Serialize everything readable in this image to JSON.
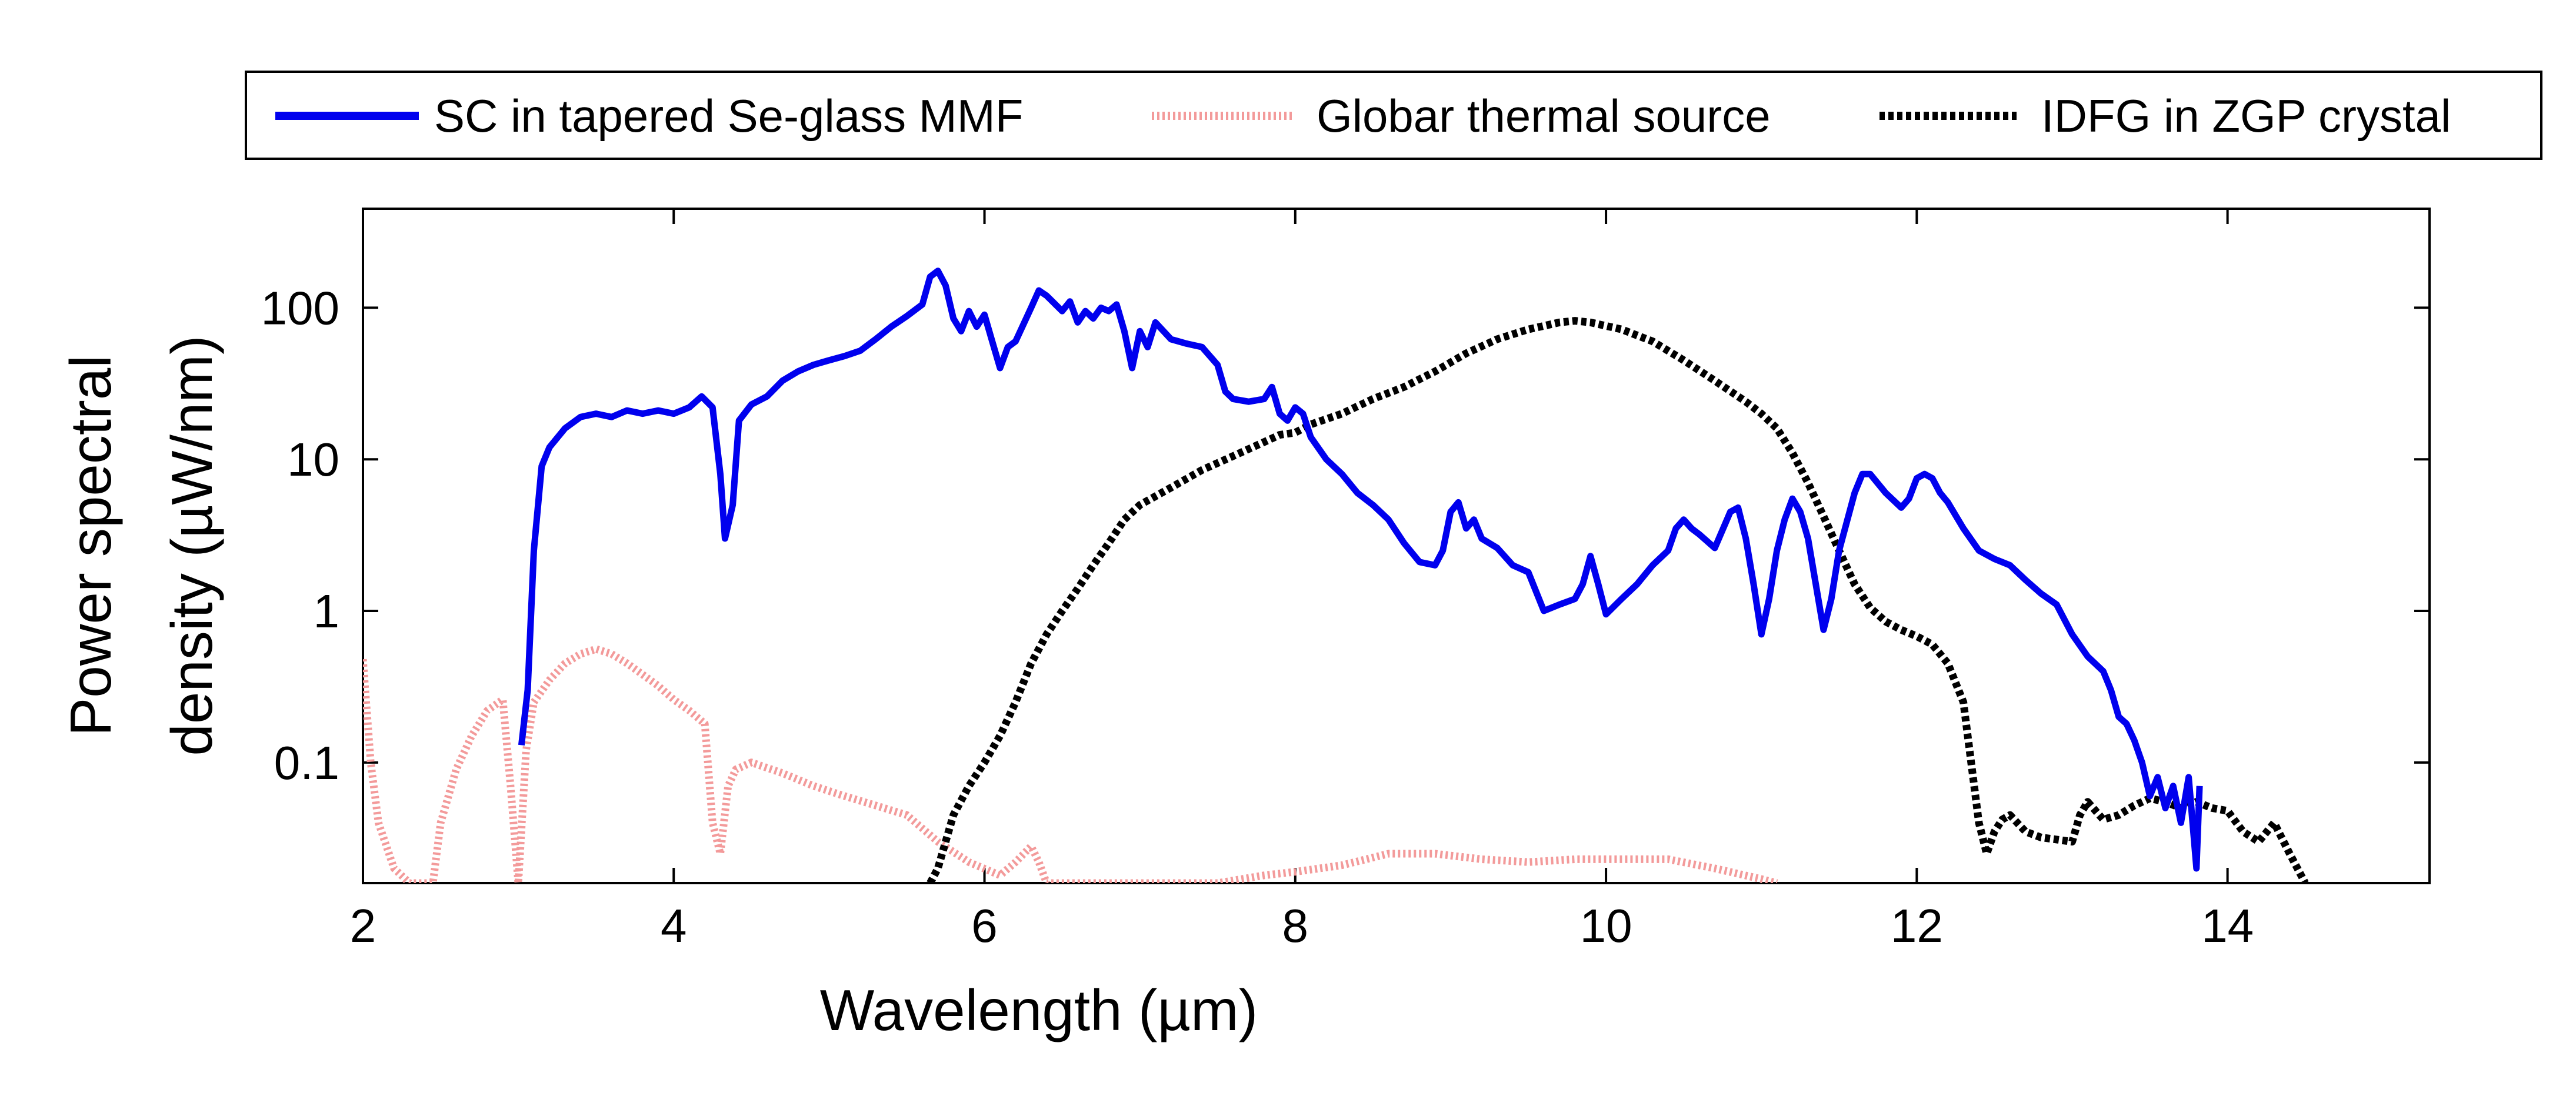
{
  "chart_data": {
    "type": "line",
    "title": "",
    "xlabel": "Wavelength (µm)",
    "ylabel_line1": "Power spectral",
    "ylabel_line2": "density (µW/nm)",
    "yscale": "log",
    "xlim": [
      2,
      15.3
    ],
    "ylim": [
      0.016,
      450
    ],
    "grid": false,
    "legend_position": "top",
    "x_ticks": [
      2,
      4,
      6,
      8,
      10,
      12,
      14
    ],
    "x_tick_labels": [
      "2",
      "4",
      "6",
      "8",
      "10",
      "12",
      "14"
    ],
    "y_ticks": [
      0.1,
      1,
      10,
      100
    ],
    "y_tick_labels": [
      "0.1",
      "1",
      "10",
      "100"
    ],
    "series": [
      {
        "name": "SC in tapered Se-glass MMF",
        "color": "#0000ee",
        "style": "solid",
        "points": [
          [
            3.02,
            0.13
          ],
          [
            3.06,
            0.3
          ],
          [
            3.1,
            2.5
          ],
          [
            3.15,
            9
          ],
          [
            3.2,
            12
          ],
          [
            3.3,
            16
          ],
          [
            3.4,
            19
          ],
          [
            3.5,
            20
          ],
          [
            3.6,
            19
          ],
          [
            3.7,
            21
          ],
          [
            3.8,
            20
          ],
          [
            3.9,
            21
          ],
          [
            4.0,
            20
          ],
          [
            4.1,
            22
          ],
          [
            4.18,
            26
          ],
          [
            4.25,
            22
          ],
          [
            4.3,
            8
          ],
          [
            4.33,
            3
          ],
          [
            4.38,
            5
          ],
          [
            4.42,
            18
          ],
          [
            4.5,
            23
          ],
          [
            4.6,
            26
          ],
          [
            4.7,
            33
          ],
          [
            4.8,
            38
          ],
          [
            4.9,
            42
          ],
          [
            5.0,
            45
          ],
          [
            5.1,
            48
          ],
          [
            5.2,
            52
          ],
          [
            5.3,
            62
          ],
          [
            5.4,
            75
          ],
          [
            5.5,
            88
          ],
          [
            5.6,
            105
          ],
          [
            5.65,
            160
          ],
          [
            5.7,
            175
          ],
          [
            5.75,
            140
          ],
          [
            5.8,
            85
          ],
          [
            5.85,
            70
          ],
          [
            5.9,
            95
          ],
          [
            5.95,
            75
          ],
          [
            6.0,
            90
          ],
          [
            6.05,
            60
          ],
          [
            6.1,
            40
          ],
          [
            6.15,
            55
          ],
          [
            6.2,
            60
          ],
          [
            6.3,
            100
          ],
          [
            6.35,
            130
          ],
          [
            6.4,
            120
          ],
          [
            6.5,
            95
          ],
          [
            6.55,
            110
          ],
          [
            6.6,
            80
          ],
          [
            6.65,
            95
          ],
          [
            6.7,
            85
          ],
          [
            6.75,
            100
          ],
          [
            6.8,
            95
          ],
          [
            6.85,
            105
          ],
          [
            6.9,
            70
          ],
          [
            6.95,
            40
          ],
          [
            7.0,
            70
          ],
          [
            7.05,
            55
          ],
          [
            7.1,
            80
          ],
          [
            7.2,
            62
          ],
          [
            7.3,
            58
          ],
          [
            7.4,
            55
          ],
          [
            7.5,
            42
          ],
          [
            7.55,
            28
          ],
          [
            7.6,
            25
          ],
          [
            7.7,
            24
          ],
          [
            7.8,
            25
          ],
          [
            7.85,
            30
          ],
          [
            7.9,
            20
          ],
          [
            7.95,
            18
          ],
          [
            8.0,
            22
          ],
          [
            8.05,
            20
          ],
          [
            8.1,
            14
          ],
          [
            8.2,
            10
          ],
          [
            8.3,
            8
          ],
          [
            8.4,
            6
          ],
          [
            8.5,
            5
          ],
          [
            8.6,
            4
          ],
          [
            8.7,
            2.8
          ],
          [
            8.8,
            2.1
          ],
          [
            8.9,
            2.0
          ],
          [
            8.95,
            2.5
          ],
          [
            9.0,
            4.5
          ],
          [
            9.05,
            5.2
          ],
          [
            9.1,
            3.5
          ],
          [
            9.15,
            4.0
          ],
          [
            9.2,
            3.0
          ],
          [
            9.3,
            2.6
          ],
          [
            9.4,
            2.0
          ],
          [
            9.5,
            1.8
          ],
          [
            9.6,
            1.0
          ],
          [
            9.7,
            1.1
          ],
          [
            9.8,
            1.2
          ],
          [
            9.85,
            1.5
          ],
          [
            9.9,
            2.3
          ],
          [
            9.95,
            1.5
          ],
          [
            10.0,
            0.95
          ],
          [
            10.1,
            1.2
          ],
          [
            10.2,
            1.5
          ],
          [
            10.3,
            2.0
          ],
          [
            10.4,
            2.5
          ],
          [
            10.45,
            3.5
          ],
          [
            10.5,
            4.0
          ],
          [
            10.55,
            3.5
          ],
          [
            10.6,
            3.2
          ],
          [
            10.7,
            2.6
          ],
          [
            10.8,
            4.5
          ],
          [
            10.85,
            4.8
          ],
          [
            10.9,
            3.0
          ],
          [
            10.95,
            1.5
          ],
          [
            11.0,
            0.7
          ],
          [
            11.05,
            1.2
          ],
          [
            11.1,
            2.5
          ],
          [
            11.15,
            4.0
          ],
          [
            11.2,
            5.5
          ],
          [
            11.25,
            4.5
          ],
          [
            11.3,
            3.0
          ],
          [
            11.35,
            1.5
          ],
          [
            11.4,
            0.75
          ],
          [
            11.45,
            1.2
          ],
          [
            11.5,
            2.5
          ],
          [
            11.6,
            6
          ],
          [
            11.65,
            8
          ],
          [
            11.7,
            8
          ],
          [
            11.8,
            6
          ],
          [
            11.9,
            4.8
          ],
          [
            11.95,
            5.5
          ],
          [
            12.0,
            7.5
          ],
          [
            12.05,
            8
          ],
          [
            12.1,
            7.5
          ],
          [
            12.15,
            6
          ],
          [
            12.2,
            5.2
          ],
          [
            12.3,
            3.5
          ],
          [
            12.4,
            2.5
          ],
          [
            12.5,
            2.2
          ],
          [
            12.6,
            2.0
          ],
          [
            12.7,
            1.6
          ],
          [
            12.8,
            1.3
          ],
          [
            12.9,
            1.1
          ],
          [
            13.0,
            0.7
          ],
          [
            13.1,
            0.5
          ],
          [
            13.2,
            0.4
          ],
          [
            13.25,
            0.3
          ],
          [
            13.3,
            0.2
          ],
          [
            13.35,
            0.18
          ],
          [
            13.4,
            0.14
          ],
          [
            13.45,
            0.1
          ],
          [
            13.5,
            0.06
          ],
          [
            13.55,
            0.08
          ],
          [
            13.6,
            0.05
          ],
          [
            13.65,
            0.07
          ],
          [
            13.7,
            0.04
          ],
          [
            13.75,
            0.08
          ],
          [
            13.8,
            0.02
          ],
          [
            13.82,
            0.07
          ]
        ]
      },
      {
        "name": "Globar thermal source",
        "color": "#f39a9a",
        "style": "dotted",
        "points": [
          [
            2.0,
            0.48
          ],
          [
            2.05,
            0.1
          ],
          [
            2.1,
            0.04
          ],
          [
            2.2,
            0.02
          ],
          [
            2.3,
            0.016
          ],
          [
            2.4,
            0.016
          ],
          [
            2.45,
            0.016
          ],
          [
            2.5,
            0.04
          ],
          [
            2.6,
            0.09
          ],
          [
            2.7,
            0.15
          ],
          [
            2.8,
            0.22
          ],
          [
            2.9,
            0.26
          ],
          [
            2.95,
            0.07
          ],
          [
            3.0,
            0.016
          ],
          [
            3.05,
            0.12
          ],
          [
            3.1,
            0.25
          ],
          [
            3.2,
            0.35
          ],
          [
            3.3,
            0.45
          ],
          [
            3.4,
            0.52
          ],
          [
            3.5,
            0.56
          ],
          [
            3.6,
            0.52
          ],
          [
            3.7,
            0.45
          ],
          [
            3.8,
            0.38
          ],
          [
            3.9,
            0.32
          ],
          [
            4.0,
            0.26
          ],
          [
            4.1,
            0.22
          ],
          [
            4.2,
            0.18
          ],
          [
            4.25,
            0.04
          ],
          [
            4.3,
            0.025
          ],
          [
            4.35,
            0.07
          ],
          [
            4.4,
            0.09
          ],
          [
            4.5,
            0.1
          ],
          [
            4.7,
            0.085
          ],
          [
            4.9,
            0.07
          ],
          [
            5.1,
            0.06
          ],
          [
            5.3,
            0.052
          ],
          [
            5.5,
            0.045
          ],
          [
            5.7,
            0.03
          ],
          [
            5.9,
            0.022
          ],
          [
            6.1,
            0.018
          ],
          [
            6.2,
            0.022
          ],
          [
            6.3,
            0.028
          ],
          [
            6.35,
            0.022
          ],
          [
            6.4,
            0.016
          ],
          [
            7.0,
            0.016
          ],
          [
            7.5,
            0.016
          ],
          [
            7.8,
            0.018
          ],
          [
            8.0,
            0.019
          ],
          [
            8.3,
            0.021
          ],
          [
            8.6,
            0.025
          ],
          [
            8.9,
            0.025
          ],
          [
            9.2,
            0.023
          ],
          [
            9.5,
            0.022
          ],
          [
            9.8,
            0.023
          ],
          [
            10.1,
            0.023
          ],
          [
            10.4,
            0.023
          ],
          [
            10.7,
            0.02
          ],
          [
            11.0,
            0.017
          ],
          [
            11.1,
            0.016
          ]
        ]
      },
      {
        "name": "IDFG in ZGP crystal",
        "color": "#000000",
        "style": "dashed",
        "points": [
          [
            5.65,
            0.016
          ],
          [
            5.7,
            0.02
          ],
          [
            5.75,
            0.03
          ],
          [
            5.8,
            0.045
          ],
          [
            5.9,
            0.07
          ],
          [
            6.0,
            0.1
          ],
          [
            6.1,
            0.15
          ],
          [
            6.2,
            0.25
          ],
          [
            6.3,
            0.45
          ],
          [
            6.4,
            0.7
          ],
          [
            6.5,
            1.0
          ],
          [
            6.6,
            1.4
          ],
          [
            6.7,
            2.0
          ],
          [
            6.8,
            2.8
          ],
          [
            6.9,
            4.0
          ],
          [
            7.0,
            5.0
          ],
          [
            7.2,
            6.5
          ],
          [
            7.4,
            8.5
          ],
          [
            7.6,
            10.5
          ],
          [
            7.8,
            13
          ],
          [
            7.9,
            14.5
          ],
          [
            8.0,
            15
          ],
          [
            8.1,
            17
          ],
          [
            8.3,
            20
          ],
          [
            8.5,
            25
          ],
          [
            8.7,
            30
          ],
          [
            8.9,
            38
          ],
          [
            9.1,
            50
          ],
          [
            9.3,
            62
          ],
          [
            9.5,
            72
          ],
          [
            9.7,
            80
          ],
          [
            9.8,
            82
          ],
          [
            9.9,
            80
          ],
          [
            10.1,
            72
          ],
          [
            10.3,
            60
          ],
          [
            10.5,
            45
          ],
          [
            10.7,
            33
          ],
          [
            10.9,
            24
          ],
          [
            11.0,
            20
          ],
          [
            11.1,
            16
          ],
          [
            11.2,
            11
          ],
          [
            11.3,
            7
          ],
          [
            11.4,
            4.2
          ],
          [
            11.5,
            2.5
          ],
          [
            11.6,
            1.5
          ],
          [
            11.7,
            1.05
          ],
          [
            11.8,
            0.85
          ],
          [
            11.9,
            0.75
          ],
          [
            12.0,
            0.68
          ],
          [
            12.1,
            0.6
          ],
          [
            12.2,
            0.45
          ],
          [
            12.3,
            0.25
          ],
          [
            12.35,
            0.1
          ],
          [
            12.4,
            0.04
          ],
          [
            12.45,
            0.025
          ],
          [
            12.5,
            0.035
          ],
          [
            12.55,
            0.042
          ],
          [
            12.6,
            0.045
          ],
          [
            12.7,
            0.035
          ],
          [
            12.8,
            0.032
          ],
          [
            12.9,
            0.031
          ],
          [
            13.0,
            0.03
          ],
          [
            13.05,
            0.045
          ],
          [
            13.1,
            0.055
          ],
          [
            13.2,
            0.042
          ],
          [
            13.3,
            0.045
          ],
          [
            13.4,
            0.052
          ],
          [
            13.5,
            0.058
          ],
          [
            13.6,
            0.055
          ],
          [
            13.7,
            0.05
          ],
          [
            13.8,
            0.055
          ],
          [
            13.9,
            0.05
          ],
          [
            14.0,
            0.048
          ],
          [
            14.1,
            0.035
          ],
          [
            14.2,
            0.03
          ],
          [
            14.3,
            0.04
          ],
          [
            14.4,
            0.025
          ],
          [
            14.5,
            0.016
          ]
        ]
      }
    ]
  }
}
